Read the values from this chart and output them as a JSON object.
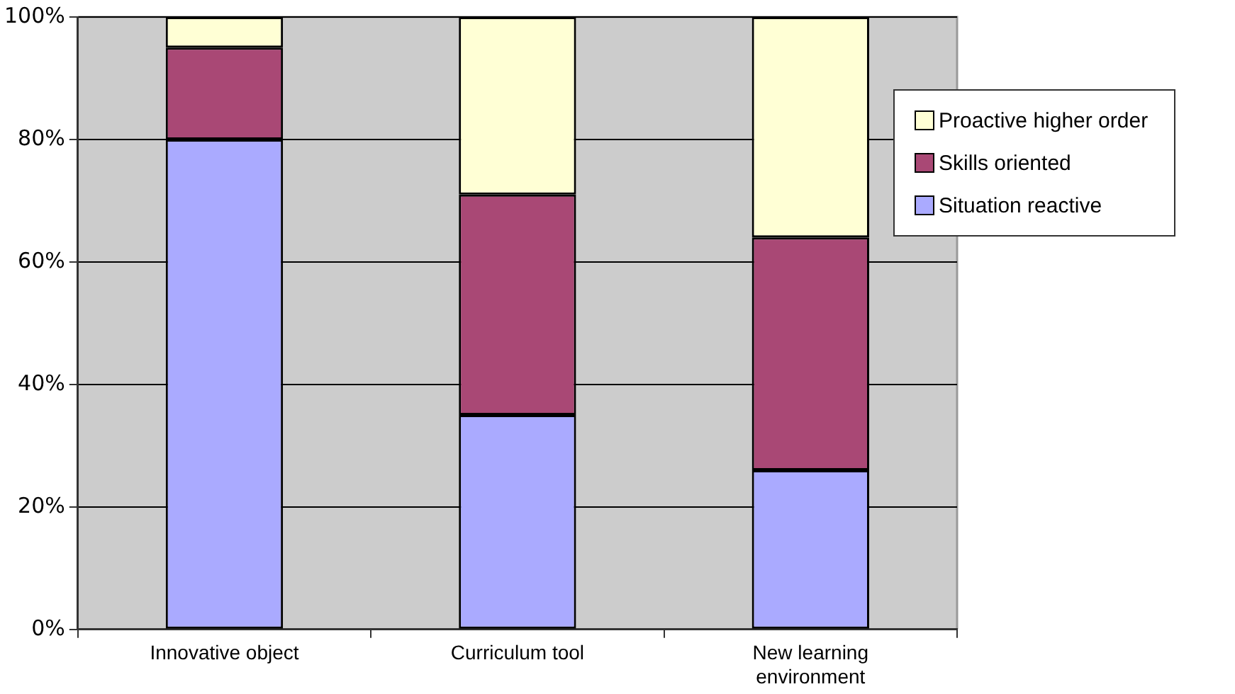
{
  "chart_data": {
    "type": "bar",
    "stacked": true,
    "categories": [
      "Innovative object",
      "Curriculum tool",
      "New learning environment"
    ],
    "series": [
      {
        "name": "Situation reactive",
        "color": "#aaaaff",
        "values": [
          80,
          35,
          26
        ]
      },
      {
        "name": "Skills oriented",
        "color": "#a94875",
        "values": [
          15,
          36,
          38
        ]
      },
      {
        "name": "Proactive higher order",
        "color": "#ffffd5",
        "values": [
          5,
          29,
          36
        ]
      }
    ],
    "ylim": [
      0,
      100
    ],
    "yticks": [
      {
        "value": 0,
        "label": "0%"
      },
      {
        "value": 20,
        "label": "20%"
      },
      {
        "value": 40,
        "label": "40%"
      },
      {
        "value": 60,
        "label": "60%"
      },
      {
        "value": 80,
        "label": "80%"
      },
      {
        "value": 100,
        "label": "100%"
      }
    ],
    "grid": "y",
    "legend": "right"
  }
}
